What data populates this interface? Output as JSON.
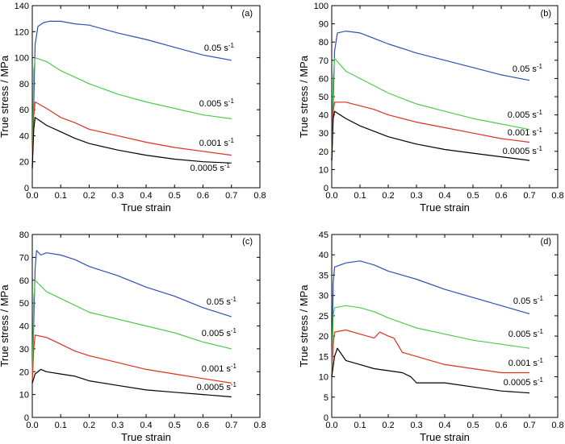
{
  "chart_data": [
    {
      "type": "line",
      "panel_label": "(a)",
      "xlabel": "True strain",
      "ylabel": "True stress / MPa",
      "xlim": [
        0,
        0.8
      ],
      "ylim": [
        0,
        140
      ],
      "xticks": [
        "0.0",
        "0.1",
        "0.2",
        "0.3",
        "0.4",
        "0.5",
        "0.6",
        "0.7",
        "0.8"
      ],
      "yticks": [
        "0",
        "20",
        "40",
        "60",
        "80",
        "100",
        "120",
        "140"
      ],
      "series": [
        {
          "name": "0.05 s⁻¹",
          "color": "#3050b0",
          "x": [
            0,
            0.01,
            0.02,
            0.04,
            0.06,
            0.1,
            0.15,
            0.2,
            0.25,
            0.3,
            0.4,
            0.5,
            0.6,
            0.7
          ],
          "y": [
            15,
            110,
            124,
            127,
            128,
            128,
            126,
            125,
            122,
            119,
            114,
            108,
            102,
            98
          ]
        },
        {
          "name": "0.005 s⁻¹",
          "color": "#4ccc4c",
          "x": [
            0,
            0.005,
            0.01,
            0.05,
            0.1,
            0.15,
            0.2,
            0.3,
            0.4,
            0.5,
            0.6,
            0.7
          ],
          "y": [
            15,
            90,
            100,
            97,
            90,
            85,
            80,
            72,
            66,
            61,
            56,
            53
          ]
        },
        {
          "name": "0.001 s⁻¹",
          "color": "#e03020",
          "x": [
            0,
            0.005,
            0.01,
            0.05,
            0.1,
            0.15,
            0.2,
            0.3,
            0.4,
            0.5,
            0.6,
            0.7
          ],
          "y": [
            15,
            55,
            66,
            61,
            54,
            50,
            45,
            40,
            35,
            31,
            28,
            25
          ]
        },
        {
          "name": "0.0005 s⁻¹",
          "color": "#000000",
          "x": [
            0,
            0.005,
            0.01,
            0.05,
            0.1,
            0.15,
            0.2,
            0.3,
            0.4,
            0.5,
            0.6,
            0.7
          ],
          "y": [
            15,
            45,
            54,
            48,
            43,
            38,
            34,
            29,
            25,
            22,
            20,
            19
          ]
        }
      ]
    },
    {
      "type": "line",
      "panel_label": "(b)",
      "xlabel": "True strain",
      "ylabel": "True stress / MPa",
      "xlim": [
        0,
        0.8
      ],
      "ylim": [
        0,
        100
      ],
      "xticks": [
        "0.0",
        "0.1",
        "0.2",
        "0.3",
        "0.4",
        "0.5",
        "0.6",
        "0.7",
        "0.8"
      ],
      "yticks": [
        "0",
        "10",
        "20",
        "30",
        "40",
        "50",
        "60",
        "70",
        "80",
        "90",
        "100"
      ],
      "series": [
        {
          "name": "0.05 s⁻¹",
          "color": "#3050b0",
          "x": [
            0,
            0.01,
            0.02,
            0.05,
            0.1,
            0.15,
            0.2,
            0.3,
            0.4,
            0.5,
            0.6,
            0.7
          ],
          "y": [
            15,
            75,
            85,
            86,
            85,
            82,
            79,
            74,
            70,
            66,
            62,
            59
          ]
        },
        {
          "name": "0.005 s⁻¹",
          "color": "#4ccc4c",
          "x": [
            0,
            0.005,
            0.01,
            0.05,
            0.1,
            0.15,
            0.2,
            0.3,
            0.4,
            0.5,
            0.6,
            0.7
          ],
          "y": [
            15,
            60,
            71,
            64,
            60,
            56,
            52,
            46,
            42,
            38,
            35,
            32
          ]
        },
        {
          "name": "0.001 s⁻¹",
          "color": "#e03020",
          "x": [
            0,
            0.005,
            0.01,
            0.05,
            0.1,
            0.15,
            0.2,
            0.3,
            0.4,
            0.5,
            0.6,
            0.7
          ],
          "y": [
            15,
            42,
            47,
            47,
            45,
            43,
            40,
            36,
            33,
            30,
            27,
            25
          ]
        },
        {
          "name": "0.0005 s⁻¹",
          "color": "#000000",
          "x": [
            0,
            0.005,
            0.01,
            0.05,
            0.1,
            0.15,
            0.2,
            0.3,
            0.4,
            0.5,
            0.6,
            0.7
          ],
          "y": [
            15,
            38,
            42,
            38,
            34,
            31,
            28,
            24,
            21,
            19,
            17,
            15
          ]
        }
      ]
    },
    {
      "type": "line",
      "panel_label": "(c)",
      "xlabel": "True strain",
      "ylabel": "True stress / MPa",
      "xlim": [
        0,
        0.8
      ],
      "ylim": [
        0,
        80
      ],
      "xticks": [
        "0.0",
        "0.1",
        "0.2",
        "0.3",
        "0.4",
        "0.5",
        "0.6",
        "0.7",
        "0.8"
      ],
      "yticks": [
        "0",
        "10",
        "20",
        "30",
        "40",
        "50",
        "60",
        "70",
        "80"
      ],
      "series": [
        {
          "name": "0.05 s⁻¹",
          "color": "#3050b0",
          "x": [
            0,
            0.01,
            0.015,
            0.03,
            0.05,
            0.1,
            0.15,
            0.2,
            0.3,
            0.4,
            0.5,
            0.6,
            0.7
          ],
          "y": [
            15,
            65,
            73,
            71,
            72,
            71,
            69,
            66,
            62,
            57,
            53,
            48,
            44
          ]
        },
        {
          "name": "0.005 s⁻¹",
          "color": "#4ccc4c",
          "x": [
            0,
            0.005,
            0.01,
            0.05,
            0.1,
            0.15,
            0.2,
            0.3,
            0.4,
            0.5,
            0.6,
            0.7
          ],
          "y": [
            15,
            52,
            60,
            55,
            52,
            49,
            46,
            43,
            40,
            37,
            33,
            30
          ]
        },
        {
          "name": "0.001 s⁻¹",
          "color": "#e03020",
          "x": [
            0,
            0.005,
            0.01,
            0.05,
            0.1,
            0.15,
            0.2,
            0.3,
            0.4,
            0.5,
            0.6,
            0.7
          ],
          "y": [
            15,
            30,
            36,
            35,
            32,
            29,
            27,
            24,
            21,
            19,
            17,
            15
          ]
        },
        {
          "name": "0.0005 s⁻¹",
          "color": "#000000",
          "x": [
            0,
            0.005,
            0.01,
            0.03,
            0.05,
            0.1,
            0.15,
            0.2,
            0.3,
            0.4,
            0.5,
            0.6,
            0.7
          ],
          "y": [
            15,
            17,
            19,
            21,
            20,
            19,
            18,
            16,
            14,
            12,
            11,
            10,
            9
          ]
        }
      ]
    },
    {
      "type": "line",
      "panel_label": "(d)",
      "xlabel": "True strain",
      "ylabel": "True stress / MPa",
      "xlim": [
        0,
        0.8
      ],
      "ylim": [
        0,
        45
      ],
      "xticks": [
        "0.0",
        "0.1",
        "0.2",
        "0.3",
        "0.4",
        "0.5",
        "0.6",
        "0.7",
        "0.8"
      ],
      "yticks": [
        "0",
        "5",
        "10",
        "15",
        "20",
        "25",
        "30",
        "35",
        "40",
        "45"
      ],
      "series": [
        {
          "name": "0.05 s⁻¹",
          "color": "#3050b0",
          "x": [
            0,
            0.005,
            0.01,
            0.05,
            0.1,
            0.15,
            0.2,
            0.3,
            0.4,
            0.5,
            0.6,
            0.7
          ],
          "y": [
            10,
            33,
            37,
            38,
            38.5,
            37.5,
            36,
            34,
            31.5,
            29.5,
            27.5,
            25.5
          ]
        },
        {
          "name": "0.005 s⁻¹",
          "color": "#4ccc4c",
          "x": [
            0,
            0.005,
            0.01,
            0.05,
            0.1,
            0.15,
            0.2,
            0.3,
            0.4,
            0.5,
            0.6,
            0.7
          ],
          "y": [
            10,
            25,
            27,
            27.5,
            27,
            26,
            24.5,
            22,
            20.5,
            19,
            18,
            17
          ]
        },
        {
          "name": "0.001 s⁻¹",
          "color": "#e03020",
          "x": [
            0,
            0.005,
            0.01,
            0.05,
            0.1,
            0.15,
            0.17,
            0.2,
            0.22,
            0.25,
            0.3,
            0.35,
            0.4,
            0.5,
            0.6,
            0.7
          ],
          "y": [
            10,
            18,
            21,
            21.5,
            20.5,
            19.5,
            21,
            20,
            19.5,
            16,
            15,
            14,
            13,
            12,
            11,
            11
          ]
        },
        {
          "name": "0.0005 s⁻¹",
          "color": "#000000",
          "x": [
            0,
            0.01,
            0.02,
            0.05,
            0.1,
            0.15,
            0.2,
            0.25,
            0.28,
            0.3,
            0.4,
            0.5,
            0.6,
            0.7
          ],
          "y": [
            10,
            15,
            17,
            14,
            13,
            12,
            11.5,
            11,
            10,
            8.5,
            8.5,
            7.5,
            6.5,
            6
          ]
        }
      ]
    }
  ]
}
